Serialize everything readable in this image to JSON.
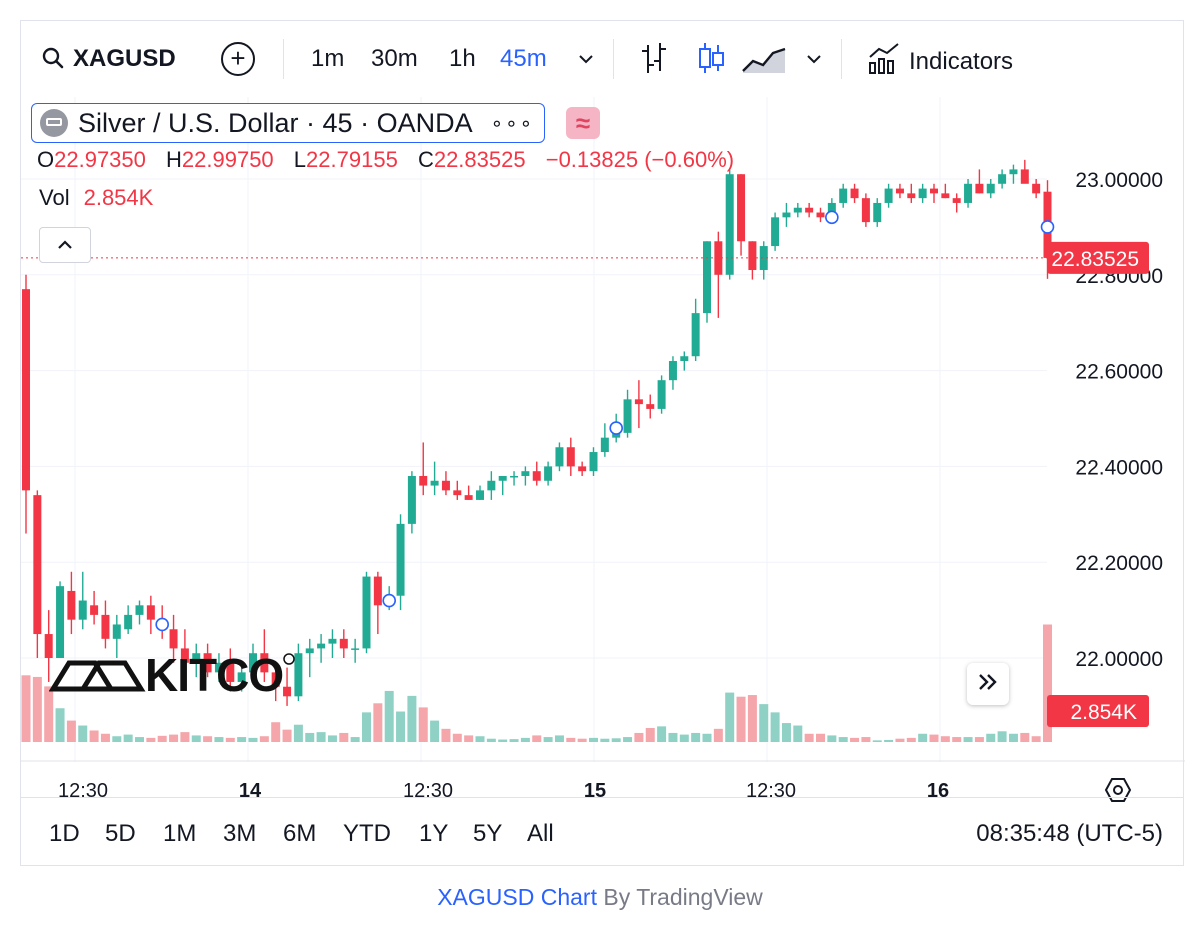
{
  "toolbar": {
    "symbol": "XAGUSD",
    "add_label": "+",
    "intervals": [
      "1m",
      "30m",
      "1h",
      "45m"
    ],
    "active_interval": "45m",
    "indicators_label": "Indicators"
  },
  "legend": {
    "title": "Silver / U.S. Dollar · 45 · OANDA",
    "more": "∘∘∘",
    "approx": "≈",
    "open_label": "O",
    "open": "22.97350",
    "high_label": "H",
    "high": "22.99750",
    "low_label": "L",
    "low": "22.79155",
    "close_label": "C",
    "close": "22.83525",
    "change": "−0.13825 (−0.60%)",
    "vol_label": "Vol",
    "vol": "2.854K"
  },
  "price_axis": {
    "ticks": [
      "23.00000",
      "22.80000",
      "22.60000",
      "22.40000",
      "22.20000",
      "22.00000"
    ],
    "last_price": "22.83525",
    "last_volume": "2.854K"
  },
  "time_axis": {
    "ticks": [
      "12:30",
      "14",
      "12:30",
      "15",
      "12:30",
      "16"
    ]
  },
  "ranges": [
    "1D",
    "5D",
    "1M",
    "3M",
    "6M",
    "YTD",
    "1Y",
    "5Y",
    "All"
  ],
  "clock": "08:35:48 (UTC-5)",
  "credit": {
    "symbol": "XAGUSD Chart",
    "by": " By TradingView"
  },
  "watermark": "KITCO",
  "colors": {
    "up": "#22ab94",
    "down": "#f23645",
    "accent": "#2962ff",
    "vol_up": "#8fd1c5",
    "vol_down": "#f4a6ab"
  },
  "chart_data": {
    "type": "candlestick",
    "symbol": "XAGUSD",
    "interval": "45m",
    "price_ylim": [
      21.86,
      23.06
    ],
    "price_ticks": [
      22.0,
      22.2,
      22.4,
      22.6,
      22.8,
      23.0
    ],
    "last_price": 22.83525,
    "candles": [
      [
        22.77,
        22.8,
        22.26,
        22.35
      ],
      [
        22.34,
        22.35,
        22.0,
        22.05
      ],
      [
        22.05,
        22.1,
        21.95,
        22.0
      ],
      [
        22.0,
        22.16,
        22.0,
        22.15
      ],
      [
        22.14,
        22.18,
        22.05,
        22.08
      ],
      [
        22.08,
        22.18,
        22.06,
        22.12
      ],
      [
        22.11,
        22.14,
        22.07,
        22.09
      ],
      [
        22.09,
        22.12,
        22.02,
        22.04
      ],
      [
        22.04,
        22.09,
        22.0,
        22.07
      ],
      [
        22.06,
        22.11,
        22.05,
        22.09
      ],
      [
        22.09,
        22.12,
        22.07,
        22.11
      ],
      [
        22.11,
        22.13,
        22.05,
        22.08
      ],
      [
        22.08,
        22.11,
        22.04,
        22.06
      ],
      [
        22.06,
        22.09,
        21.99,
        22.02
      ],
      [
        22.02,
        22.06,
        21.97,
        21.99
      ],
      [
        21.99,
        22.03,
        21.96,
        22.01
      ],
      [
        22.01,
        22.03,
        21.96,
        21.97
      ],
      [
        21.97,
        22.01,
        21.95,
        21.99
      ],
      [
        21.99,
        22.02,
        21.93,
        21.95
      ],
      [
        21.95,
        21.99,
        21.93,
        21.97
      ],
      [
        21.97,
        22.03,
        21.96,
        22.01
      ],
      [
        22.01,
        22.06,
        21.95,
        21.97
      ],
      [
        21.97,
        21.99,
        21.91,
        21.94
      ],
      [
        21.94,
        21.98,
        21.9,
        21.92
      ],
      [
        21.92,
        22.03,
        21.91,
        22.01
      ],
      [
        22.01,
        22.04,
        21.96,
        22.02
      ],
      [
        22.02,
        22.05,
        21.99,
        22.03
      ],
      [
        22.03,
        22.06,
        22.0,
        22.04
      ],
      [
        22.04,
        22.06,
        22.0,
        22.02
      ],
      [
        22.02,
        22.04,
        21.99,
        22.02
      ],
      [
        22.02,
        22.18,
        22.01,
        22.17
      ],
      [
        22.17,
        22.18,
        22.05,
        22.11
      ],
      [
        22.11,
        22.15,
        22.1,
        22.13
      ],
      [
        22.13,
        22.3,
        22.1,
        22.28
      ],
      [
        22.28,
        22.39,
        22.26,
        22.38
      ],
      [
        22.38,
        22.45,
        22.34,
        22.36
      ],
      [
        22.36,
        22.41,
        22.34,
        22.37
      ],
      [
        22.37,
        22.39,
        22.34,
        22.35
      ],
      [
        22.35,
        22.37,
        22.33,
        22.34
      ],
      [
        22.34,
        22.36,
        22.33,
        22.33
      ],
      [
        22.33,
        22.36,
        22.33,
        22.35
      ],
      [
        22.35,
        22.39,
        22.33,
        22.37
      ],
      [
        22.37,
        22.38,
        22.34,
        22.38
      ],
      [
        22.38,
        22.39,
        22.36,
        22.38
      ],
      [
        22.38,
        22.4,
        22.36,
        22.39
      ],
      [
        22.39,
        22.41,
        22.36,
        22.37
      ],
      [
        22.37,
        22.41,
        22.36,
        22.4
      ],
      [
        22.4,
        22.45,
        22.39,
        22.44
      ],
      [
        22.44,
        22.46,
        22.38,
        22.4
      ],
      [
        22.4,
        22.41,
        22.38,
        22.39
      ],
      [
        22.39,
        22.44,
        22.38,
        22.43
      ],
      [
        22.43,
        22.49,
        22.42,
        22.46
      ],
      [
        22.46,
        22.51,
        22.45,
        22.47
      ],
      [
        22.47,
        22.56,
        22.46,
        22.54
      ],
      [
        22.54,
        22.58,
        22.48,
        22.53
      ],
      [
        22.53,
        22.55,
        22.5,
        22.52
      ],
      [
        22.52,
        22.59,
        22.51,
        22.58
      ],
      [
        22.58,
        22.63,
        22.56,
        22.62
      ],
      [
        22.62,
        22.64,
        22.6,
        22.63
      ],
      [
        22.63,
        22.75,
        22.62,
        22.72
      ],
      [
        22.72,
        22.87,
        22.7,
        22.87
      ],
      [
        22.87,
        22.89,
        22.71,
        22.8
      ],
      [
        22.8,
        23.02,
        22.79,
        23.01
      ],
      [
        23.01,
        23.01,
        22.84,
        22.87
      ],
      [
        22.87,
        22.87,
        22.79,
        22.81
      ],
      [
        22.81,
        22.87,
        22.79,
        22.86
      ],
      [
        22.86,
        22.93,
        22.85,
        22.92
      ],
      [
        22.92,
        22.95,
        22.9,
        22.93
      ],
      [
        22.93,
        22.95,
        22.92,
        22.94
      ],
      [
        22.94,
        22.95,
        22.92,
        22.93
      ],
      [
        22.93,
        22.94,
        22.91,
        22.92
      ],
      [
        22.92,
        22.96,
        22.91,
        22.95
      ],
      [
        22.95,
        22.99,
        22.94,
        22.98
      ],
      [
        22.98,
        22.99,
        22.95,
        22.96
      ],
      [
        22.96,
        22.97,
        22.9,
        22.91
      ],
      [
        22.91,
        22.96,
        22.9,
        22.95
      ],
      [
        22.95,
        22.99,
        22.94,
        22.98
      ],
      [
        22.98,
        22.99,
        22.96,
        22.97
      ],
      [
        22.97,
        22.99,
        22.95,
        22.96
      ],
      [
        22.96,
        22.99,
        22.95,
        22.98
      ],
      [
        22.98,
        22.99,
        22.95,
        22.97
      ],
      [
        22.97,
        22.99,
        22.96,
        22.96
      ],
      [
        22.96,
        22.97,
        22.93,
        22.95
      ],
      [
        22.95,
        23.0,
        22.94,
        22.99
      ],
      [
        22.99,
        23.02,
        22.97,
        22.97
      ],
      [
        22.97,
        23.0,
        22.96,
        22.99
      ],
      [
        22.99,
        23.02,
        22.98,
        23.01
      ],
      [
        23.01,
        23.03,
        22.99,
        23.02
      ],
      [
        23.02,
        23.04,
        23.0,
        22.99
      ],
      [
        22.99,
        23.0,
        22.96,
        22.97
      ],
      [
        22.9735,
        22.9975,
        22.79155,
        22.83525
      ]
    ],
    "volumes": [
      1.62,
      1.58,
      1.35,
      0.82,
      0.52,
      0.4,
      0.28,
      0.2,
      0.14,
      0.18,
      0.12,
      0.1,
      0.15,
      0.18,
      0.24,
      0.16,
      0.14,
      0.12,
      0.1,
      0.12,
      0.1,
      0.14,
      0.48,
      0.3,
      0.42,
      0.22,
      0.24,
      0.16,
      0.22,
      0.12,
      0.72,
      0.94,
      1.24,
      0.74,
      1.12,
      0.84,
      0.52,
      0.32,
      0.2,
      0.16,
      0.14,
      0.08,
      0.06,
      0.07,
      0.1,
      0.16,
      0.12,
      0.16,
      0.1,
      0.08,
      0.1,
      0.08,
      0.09,
      0.12,
      0.22,
      0.34,
      0.38,
      0.22,
      0.18,
      0.22,
      0.2,
      0.32,
      1.2,
      1.1,
      1.14,
      0.92,
      0.72,
      0.46,
      0.4,
      0.2,
      0.2,
      0.16,
      0.12,
      0.1,
      0.12,
      0.04,
      0.05,
      0.08,
      0.1,
      0.2,
      0.18,
      0.14,
      0.12,
      0.12,
      0.12,
      0.2,
      0.26,
      0.2,
      0.22,
      0.14,
      2.854
    ]
  }
}
